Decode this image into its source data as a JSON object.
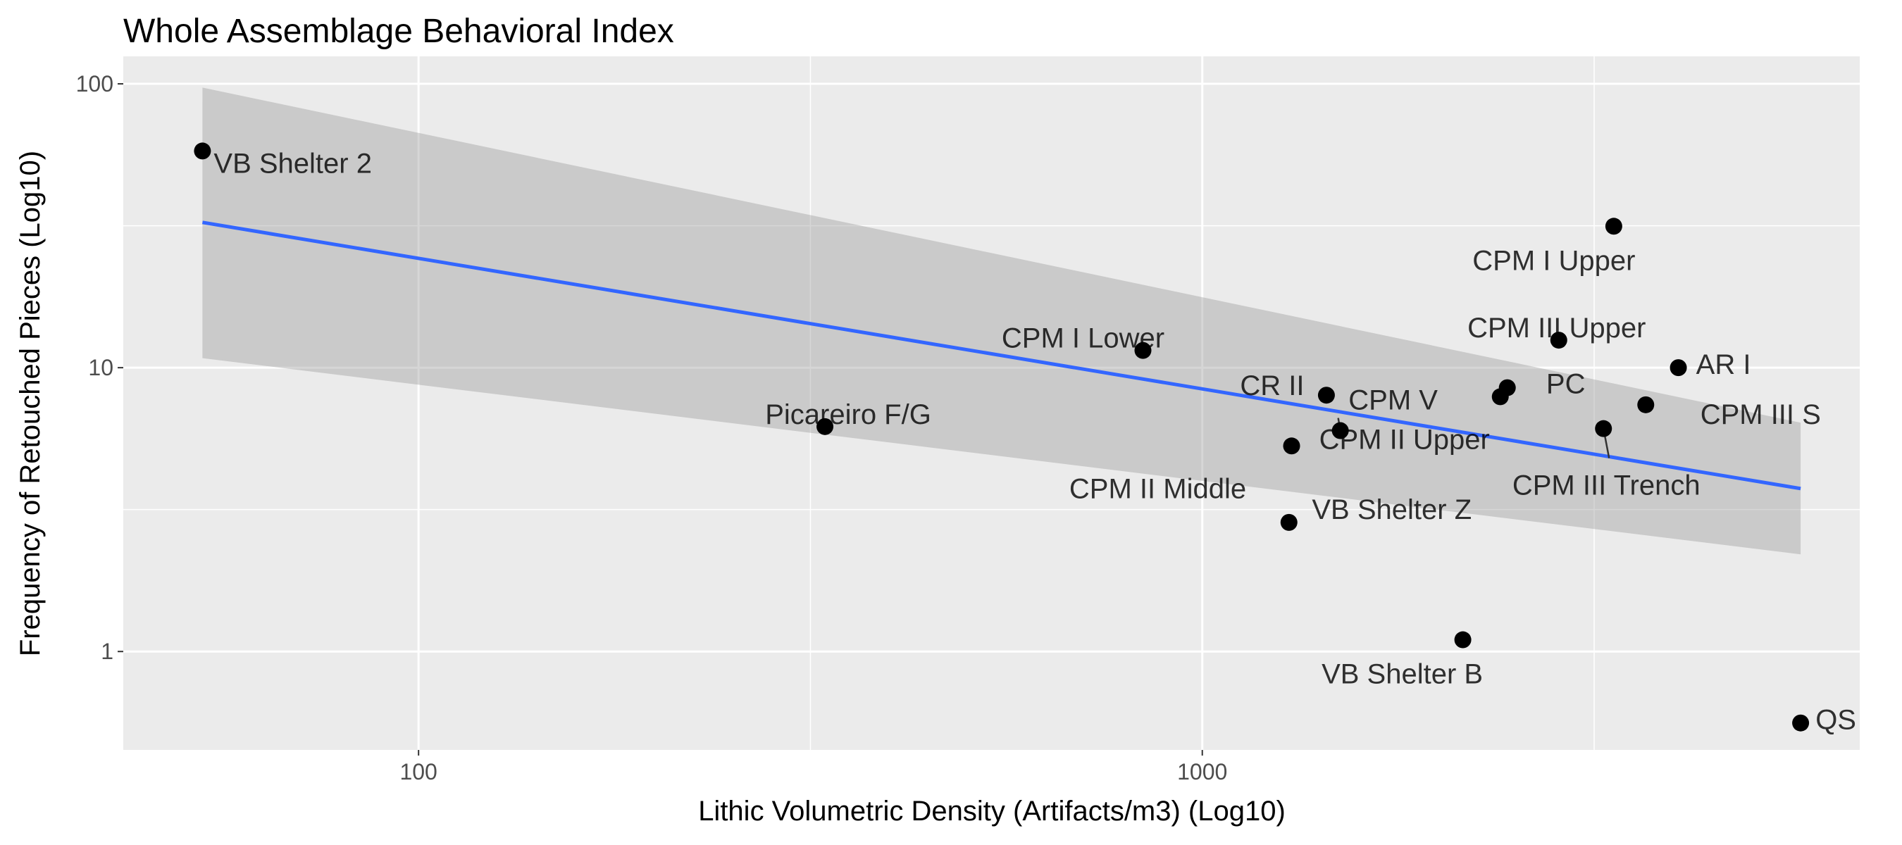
{
  "chart_data": {
    "type": "scatter",
    "title": "Whole Assemblage Behavioral Index",
    "xlabel": "Lithic Volumetric Density (Artifacts/m3) (Log10)",
    "ylabel": "Frequency of Retouched Pieces (Log10)",
    "x_scale": "log10",
    "y_scale": "log10",
    "xlim": [
      42,
      6900
    ],
    "ylim": [
      0.45,
      125
    ],
    "x_ticks": [
      100,
      1000
    ],
    "x_tick_labels": [
      "100",
      "1000"
    ],
    "y_ticks": [
      1,
      10,
      100
    ],
    "y_tick_labels": [
      "1",
      "10",
      "100"
    ],
    "grid": true,
    "legend": "none",
    "colors": {
      "panel": "#ebebeb",
      "grid": "#ffffff",
      "points": "#000000",
      "fit_line": "#3366ff",
      "confidence_band": "#999999"
    },
    "points": [
      {
        "label": "VB Shelter 2",
        "x": 53,
        "y": 58
      },
      {
        "label": "Picareiro F/G",
        "x": 330,
        "y": 6.2
      },
      {
        "label": "CPM I Lower",
        "x": 840,
        "y": 11.5
      },
      {
        "label": "CPM II Middle",
        "x": 1300,
        "y": 5.3
      },
      {
        "label": "VB Shelter Z",
        "x": 1290,
        "y": 2.85
      },
      {
        "label": "CR II",
        "x": 1440,
        "y": 8.0
      },
      {
        "label": "CPM V",
        "x": 1500,
        "y": 6.0
      },
      {
        "label": "VB Shelter B",
        "x": 2150,
        "y": 1.1
      },
      {
        "label": "CPM II Upper",
        "x": 2400,
        "y": 7.9
      },
      {
        "label": "PC",
        "x": 2450,
        "y": 8.5
      },
      {
        "label": "CPM III Upper",
        "x": 2850,
        "y": 12.5
      },
      {
        "label": "CPM III Trench",
        "x": 3250,
        "y": 6.1
      },
      {
        "label": "CPM I Upper",
        "x": 3350,
        "y": 31.5
      },
      {
        "label": "CPM III S",
        "x": 3680,
        "y": 7.4
      },
      {
        "label": "AR I",
        "x": 4050,
        "y": 10.0
      },
      {
        "label": "QS",
        "x": 5800,
        "y": 0.56
      }
    ],
    "fit_line": {
      "x": [
        53,
        5800
      ],
      "y": [
        32.5,
        3.75
      ]
    },
    "confidence_band": {
      "x": [
        53,
        5800
      ],
      "y_upper": [
        97,
        6.4
      ],
      "y_lower": [
        10.8,
        2.2
      ]
    }
  }
}
